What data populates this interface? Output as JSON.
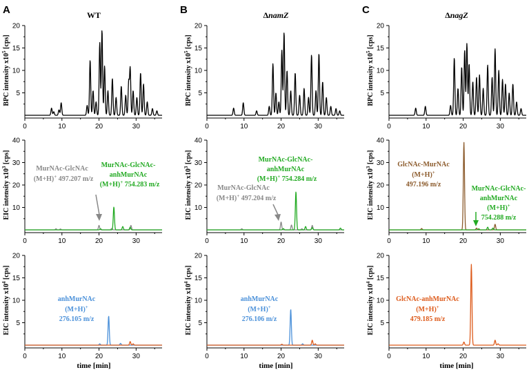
{
  "figure": {
    "panel_letters": [
      "A",
      "B",
      "C"
    ],
    "column_titles": [
      {
        "prefix": "",
        "text": "WT"
      },
      {
        "prefix": "Δ",
        "text": "namZ"
      },
      {
        "prefix": "Δ",
        "text": "nagZ"
      }
    ],
    "xlabel": "time [min]",
    "colors": {
      "bpc": "#000000",
      "gray": "#888888",
      "green": "#22aa22",
      "brown": "#8B5A2B",
      "blue": "#4a90d9",
      "orange": "#dd5a1a",
      "axis": "#000000"
    }
  },
  "chart_data": [
    {
      "id": "A-bpc",
      "type": "line",
      "ylabel_main": "BPC intensity x10",
      "ylabel_exp": "5",
      "ylabel_unit": " [cps]",
      "xlim": [
        0,
        37
      ],
      "ylim": [
        0,
        20
      ],
      "xticks": [
        0,
        10,
        20,
        30
      ],
      "yticks": [
        5,
        10,
        15,
        20
      ],
      "series": [
        {
          "name": "BPC",
          "color": "#000000",
          "peaks": [
            [
              7.2,
              1.6
            ],
            [
              7.8,
              0.8
            ],
            [
              9.2,
              1.2
            ],
            [
              9.8,
              2.8
            ],
            [
              16.8,
              2.2
            ],
            [
              17.6,
              12.3
            ],
            [
              18.4,
              5.5
            ],
            [
              19.2,
              3.0
            ],
            [
              20.2,
              16.2
            ],
            [
              20.8,
              19.0
            ],
            [
              21.5,
              11.0
            ],
            [
              22.4,
              5.5
            ],
            [
              23.6,
              8.2
            ],
            [
              24.6,
              4.0
            ],
            [
              26.0,
              6.5
            ],
            [
              27.2,
              4.5
            ],
            [
              28.0,
              7.5
            ],
            [
              28.4,
              10.5
            ],
            [
              29.2,
              5.5
            ],
            [
              30.2,
              4.0
            ],
            [
              31.2,
              9.5
            ],
            [
              32.0,
              7.0
            ],
            [
              33.0,
              3.0
            ],
            [
              34.4,
              1.5
            ],
            [
              35.6,
              1.0
            ]
          ]
        }
      ]
    },
    {
      "id": "B-bpc",
      "type": "line",
      "ylabel_main": "BPC intensity x10",
      "ylabel_exp": "5",
      "ylabel_unit": " [cps]",
      "xlim": [
        0,
        37
      ],
      "ylim": [
        0,
        20
      ],
      "xticks": [
        0,
        10,
        20,
        30
      ],
      "yticks": [
        5,
        10,
        15,
        20
      ],
      "series": [
        {
          "name": "BPC",
          "color": "#000000",
          "peaks": [
            [
              7.2,
              1.6
            ],
            [
              9.8,
              2.8
            ],
            [
              13.4,
              1.0
            ],
            [
              16.8,
              2.0
            ],
            [
              17.8,
              11.5
            ],
            [
              18.6,
              5.0
            ],
            [
              19.4,
              3.0
            ],
            [
              20.2,
              14.5
            ],
            [
              20.8,
              18.5
            ],
            [
              21.6,
              10.0
            ],
            [
              22.6,
              5.5
            ],
            [
              23.8,
              9.5
            ],
            [
              25.0,
              4.5
            ],
            [
              26.2,
              6.0
            ],
            [
              27.4,
              4.0
            ],
            [
              28.2,
              13.5
            ],
            [
              29.4,
              5.5
            ],
            [
              30.2,
              13.8
            ],
            [
              31.2,
              7.5
            ],
            [
              32.2,
              4.0
            ],
            [
              33.4,
              2.0
            ],
            [
              34.8,
              1.5
            ],
            [
              35.8,
              1.0
            ]
          ]
        }
      ]
    },
    {
      "id": "C-bpc",
      "type": "line",
      "ylabel_main": "BPC intensity x10",
      "ylabel_exp": "5",
      "ylabel_unit": " [cps]",
      "xlim": [
        0,
        37
      ],
      "ylim": [
        0,
        20
      ],
      "xticks": [
        0,
        10,
        20,
        30
      ],
      "yticks": [
        5,
        10,
        15,
        20
      ],
      "series": [
        {
          "name": "BPC",
          "color": "#000000",
          "peaks": [
            [
              7.2,
              1.6
            ],
            [
              9.8,
              2.0
            ],
            [
              16.6,
              2.2
            ],
            [
              17.6,
              12.8
            ],
            [
              18.6,
              6.0
            ],
            [
              19.6,
              10.8
            ],
            [
              20.4,
              14.5
            ],
            [
              21.0,
              16.0
            ],
            [
              21.6,
              11.5
            ],
            [
              22.6,
              7.5
            ],
            [
              23.6,
              8.5
            ],
            [
              24.4,
              9.0
            ],
            [
              25.4,
              6.0
            ],
            [
              26.6,
              11.2
            ],
            [
              27.8,
              8.5
            ],
            [
              28.6,
              14.8
            ],
            [
              29.6,
              10.0
            ],
            [
              30.6,
              8.0
            ],
            [
              31.4,
              7.0
            ],
            [
              32.4,
              5.0
            ],
            [
              33.4,
              7.0
            ],
            [
              34.4,
              3.0
            ],
            [
              35.6,
              1.5
            ]
          ]
        }
      ]
    },
    {
      "id": "A-eic3",
      "type": "line",
      "ylabel_main": "EIC intensity x10",
      "ylabel_exp": "3",
      "ylabel_unit": " [cps]",
      "xlim": [
        0,
        37
      ],
      "ylim": [
        0,
        40
      ],
      "xticks": [
        0,
        10,
        20,
        30
      ],
      "yticks": [
        10,
        20,
        30,
        40
      ],
      "series": [
        {
          "name": "MurNAc-GlcNAc",
          "color": "#888888",
          "peaks": [
            [
              8.4,
              0.5
            ],
            [
              9.6,
              0.4
            ],
            [
              20.0,
              2.0
            ],
            [
              28.6,
              2.0
            ],
            [
              23.4,
              0.6
            ]
          ]
        },
        {
          "name": "MurNAc-GlcNAc-anhMurNAc",
          "color": "#22aa22",
          "peaks": [
            [
              24.0,
              10.2
            ],
            [
              26.4,
              1.5
            ],
            [
              28.4,
              1.2
            ],
            [
              20.4,
              0.5
            ]
          ]
        }
      ]
    },
    {
      "id": "B-eic3",
      "type": "line",
      "ylabel_main": "EIC intensity x10",
      "ylabel_exp": "3",
      "ylabel_unit": " [cps]",
      "xlim": [
        0,
        37
      ],
      "ylim": [
        0,
        40
      ],
      "xticks": [
        0,
        10,
        20,
        30
      ],
      "yticks": [
        10,
        20,
        30,
        40
      ],
      "series": [
        {
          "name": "MurNAc-GlcNAc",
          "color": "#888888",
          "peaks": [
            [
              9.4,
              0.5
            ],
            [
              20.0,
              3.5
            ],
            [
              22.8,
              2.2
            ],
            [
              28.4,
              2.0
            ],
            [
              25.6,
              0.5
            ]
          ]
        },
        {
          "name": "MurNAc-GlcNAc-anhMurNAc",
          "color": "#22aa22",
          "peaks": [
            [
              24.0,
              17.0
            ],
            [
              26.6,
              1.5
            ],
            [
              28.4,
              1.0
            ],
            [
              36.0,
              0.8
            ],
            [
              20.6,
              0.6
            ]
          ]
        }
      ]
    },
    {
      "id": "C-eic3",
      "type": "line",
      "ylabel_main": "EIC intensity x10",
      "ylabel_exp": "3",
      "ylabel_unit": " [cps]",
      "xlim": [
        0,
        37
      ],
      "ylim": [
        0,
        40
      ],
      "xticks": [
        0,
        10,
        20,
        30
      ],
      "yticks": [
        10,
        20,
        30,
        40
      ],
      "series": [
        {
          "name": "GlcNAc-MurNAc",
          "color": "#8B5A2B",
          "peaks": [
            [
              8.8,
              0.6
            ],
            [
              20.2,
              39.0
            ],
            [
              23.6,
              0.8
            ],
            [
              28.6,
              2.5
            ]
          ]
        },
        {
          "name": "MurNAc-GlcNAc-anhMurNAc",
          "color": "#22aa22",
          "peaks": [
            [
              26.6,
              1.2
            ],
            [
              28.0,
              0.8
            ],
            [
              24.2,
              0.5
            ]
          ]
        }
      ]
    },
    {
      "id": "A-eic4",
      "type": "line",
      "ylabel_main": "EIC intensity x10",
      "ylabel_exp": "4",
      "ylabel_unit": " [cps]",
      "xlim": [
        0,
        37
      ],
      "ylim": [
        0,
        20
      ],
      "xticks": [
        0,
        10,
        20,
        30
      ],
      "yticks": [
        5,
        10,
        15,
        20
      ],
      "series": [
        {
          "name": "anhMurNAc",
          "color": "#4a90d9",
          "peaks": [
            [
              22.6,
              6.5
            ],
            [
              25.8,
              0.4
            ],
            [
              20.2,
              0.3
            ]
          ]
        },
        {
          "name": "GlcNAc-anhMurNAc",
          "color": "#dd5a1a",
          "peaks": [
            [
              28.4,
              0.8
            ],
            [
              29.2,
              0.3
            ]
          ]
        }
      ]
    },
    {
      "id": "B-eic4",
      "type": "line",
      "ylabel_main": "EIC intensity x10",
      "ylabel_exp": "4",
      "ylabel_unit": " [cps]",
      "xlim": [
        0,
        37
      ],
      "ylim": [
        0,
        20
      ],
      "xticks": [
        0,
        10,
        20,
        30
      ],
      "yticks": [
        5,
        10,
        15,
        20
      ],
      "series": [
        {
          "name": "anhMurNAc",
          "color": "#4a90d9",
          "peaks": [
            [
              22.6,
              8.0
            ],
            [
              25.8,
              0.3
            ]
          ]
        },
        {
          "name": "GlcNAc-anhMurNAc",
          "color": "#dd5a1a",
          "peaks": [
            [
              28.4,
              1.1
            ],
            [
              29.2,
              0.3
            ],
            [
              20.2,
              0.2
            ]
          ]
        }
      ]
    },
    {
      "id": "C-eic4",
      "type": "line",
      "ylabel_main": "EIC intensity x10",
      "ylabel_exp": "4",
      "ylabel_unit": " [cps]",
      "xlim": [
        0,
        37
      ],
      "ylim": [
        0,
        20
      ],
      "xticks": [
        0,
        10,
        20,
        30
      ],
      "yticks": [
        5,
        10,
        15,
        20
      ],
      "series": [
        {
          "name": "GlcNAc-anhMurNAc",
          "color": "#dd5a1a",
          "peaks": [
            [
              20.2,
              0.7
            ],
            [
              22.2,
              18.0
            ],
            [
              28.6,
              1.1
            ],
            [
              29.4,
              0.3
            ]
          ]
        }
      ]
    }
  ],
  "annotations": {
    "A_gray": {
      "l1": "MurNAc-GlcNAc",
      "l2a": "(M+H)",
      "l2b": "+",
      "l2c": " 497.207 m/z"
    },
    "A_green": {
      "l1": "MurNAc-GlcNAc-",
      "l2": "anhMurNAc",
      "l3a": "(M+H)",
      "l3b": "+",
      "l3c": " 754.283 m/z"
    },
    "B_gray": {
      "l1": "MurNAc-GlcNAc",
      "l2a": "(M+H)",
      "l2b": "+",
      "l2c": " 497.204 m/z"
    },
    "B_green": {
      "l1": "MurNAc-GlcNAc-",
      "l2": "anhMurNAc",
      "l3a": "(M+H)",
      "l3b": "+",
      "l3c": " 754.284 m/z"
    },
    "C_brown": {
      "l1": "GlcNAc-MurNAc",
      "l2a": "(M+H)",
      "l2b": "+",
      "l3": "497.196 m/z"
    },
    "C_green": {
      "l1": "MurNAc-GlcNAc-",
      "l2": "anhMurNAc",
      "l3a": "(M+H)",
      "l3b": "+",
      "l4": "754.288 m/z"
    },
    "A_blue": {
      "l1": "anhMurNAc",
      "l2a": "(M+H)",
      "l2b": "+",
      "l3": "276.105 m/z"
    },
    "B_blue": {
      "l1": "anhMurNAc",
      "l2a": "(M+H)",
      "l2b": "+",
      "l3": "276.106 m/z"
    },
    "C_orange": {
      "l1": "GlcNAc-anhMurNAc",
      "l2a": "(M+H)",
      "l2b": "+",
      "l3": "479.185 m/z"
    }
  }
}
